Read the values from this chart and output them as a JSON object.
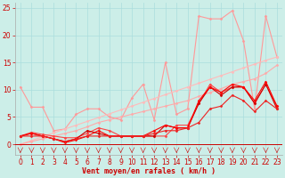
{
  "background_color": "#cceee8",
  "grid_color": "#aadddd",
  "xlabel": "Vent moyen/en rafales ( km/h )",
  "xlabel_color": "#cc0000",
  "xlabel_fontsize": 6,
  "xtick_color": "#cc0000",
  "ytick_color": "#cc0000",
  "tick_fontsize": 5.5,
  "xlim": [
    -0.5,
    23.5
  ],
  "ylim": [
    -2,
    26
  ],
  "yticks": [
    0,
    5,
    10,
    15,
    20,
    25
  ],
  "xticks": [
    0,
    1,
    2,
    3,
    4,
    5,
    6,
    7,
    8,
    9,
    10,
    11,
    12,
    13,
    14,
    15,
    16,
    17,
    18,
    19,
    20,
    21,
    22,
    23
  ],
  "series": [
    {
      "x": [
        0,
        1,
        2,
        3,
        4,
        5,
        6,
        7,
        8,
        9,
        10,
        11,
        12,
        13,
        14,
        15,
        16,
        17,
        18,
        19,
        20,
        21,
        22,
        23
      ],
      "y": [
        10.5,
        6.8,
        6.8,
        2.5,
        2.8,
        5.5,
        6.5,
        6.5,
        5.0,
        4.5,
        8.5,
        11.0,
        4.5,
        15.0,
        5.5,
        6.5,
        23.5,
        23.0,
        23.0,
        24.5,
        19.0,
        6.5,
        23.5,
        16.0
      ],
      "color": "#ff9999",
      "marker": "D",
      "markersize": 1.5,
      "linewidth": 0.8
    },
    {
      "x": [
        0,
        1,
        2,
        3,
        4,
        5,
        6,
        7,
        8,
        9,
        10,
        11,
        12,
        13,
        14,
        15,
        16,
        17,
        18,
        19,
        20,
        21,
        22,
        23
      ],
      "y": [
        0.0,
        0.7,
        1.4,
        2.1,
        2.8,
        3.5,
        4.2,
        4.9,
        5.6,
        6.3,
        7.0,
        7.7,
        8.4,
        9.1,
        9.8,
        10.5,
        11.2,
        11.9,
        12.6,
        13.3,
        14.0,
        14.7,
        15.4,
        16.0
      ],
      "color": "#ffbbbb",
      "marker": "D",
      "markersize": 1.5,
      "linewidth": 0.8
    },
    {
      "x": [
        0,
        1,
        2,
        3,
        4,
        5,
        6,
        7,
        8,
        9,
        10,
        11,
        12,
        13,
        14,
        15,
        16,
        17,
        18,
        19,
        20,
        21,
        22,
        23
      ],
      "y": [
        0.0,
        0.5,
        1.0,
        1.5,
        2.0,
        2.5,
        3.2,
        4.0,
        4.5,
        5.0,
        5.5,
        6.0,
        6.5,
        7.0,
        7.5,
        8.0,
        8.8,
        9.5,
        10.2,
        11.0,
        11.5,
        12.0,
        13.0,
        14.5
      ],
      "color": "#ffaaaa",
      "marker": "D",
      "markersize": 1.5,
      "linewidth": 0.8
    },
    {
      "x": [
        0,
        1,
        2,
        3,
        4,
        5,
        6,
        7,
        8,
        9,
        10,
        11,
        12,
        13,
        14,
        15,
        16,
        17,
        18,
        19,
        20,
        21,
        22,
        23
      ],
      "y": [
        1.5,
        2.2,
        1.8,
        1.5,
        1.2,
        1.2,
        2.0,
        3.0,
        2.5,
        1.5,
        1.5,
        1.5,
        1.5,
        1.5,
        3.5,
        3.5,
        7.5,
        11.0,
        9.5,
        10.5,
        10.5,
        7.5,
        11.0,
        7.0
      ],
      "color": "#ff4444",
      "marker": "D",
      "markersize": 1.5,
      "linewidth": 0.8
    },
    {
      "x": [
        0,
        1,
        2,
        3,
        4,
        5,
        6,
        7,
        8,
        9,
        10,
        11,
        12,
        13,
        14,
        15,
        16,
        17,
        18,
        19,
        20,
        21,
        22,
        23
      ],
      "y": [
        1.5,
        2.0,
        1.5,
        1.0,
        0.5,
        1.0,
        2.5,
        2.0,
        1.5,
        1.5,
        1.5,
        1.5,
        1.5,
        3.5,
        3.0,
        3.0,
        7.5,
        10.5,
        9.0,
        10.5,
        10.5,
        7.5,
        11.0,
        6.5
      ],
      "color": "#cc0000",
      "marker": "D",
      "markersize": 1.5,
      "linewidth": 0.8
    },
    {
      "x": [
        0,
        1,
        2,
        3,
        4,
        5,
        6,
        7,
        8,
        9,
        10,
        11,
        12,
        13,
        14,
        15,
        16,
        17,
        18,
        19,
        20,
        21,
        22,
        23
      ],
      "y": [
        1.5,
        2.0,
        1.5,
        1.0,
        0.3,
        0.8,
        1.5,
        2.5,
        1.5,
        1.5,
        1.5,
        1.5,
        2.5,
        3.5,
        3.0,
        3.0,
        8.0,
        10.5,
        9.5,
        11.0,
        10.5,
        8.0,
        11.5,
        7.0
      ],
      "color": "#ff0000",
      "marker": "D",
      "markersize": 1.5,
      "linewidth": 0.8
    },
    {
      "x": [
        0,
        1,
        2,
        3,
        4,
        5,
        6,
        7,
        8,
        9,
        10,
        11,
        12,
        13,
        14,
        15,
        16,
        17,
        18,
        19,
        20,
        21,
        22,
        23
      ],
      "y": [
        1.5,
        1.5,
        1.5,
        1.0,
        0.5,
        1.0,
        1.5,
        1.5,
        1.5,
        1.5,
        1.5,
        1.5,
        2.0,
        2.5,
        2.5,
        3.0,
        4.0,
        6.5,
        7.0,
        9.0,
        8.0,
        6.0,
        8.0,
        6.5
      ],
      "color": "#ee2222",
      "marker": "D",
      "markersize": 1.5,
      "linewidth": 0.8
    }
  ],
  "wind_color": "#cc0000",
  "wind_y": -1.3,
  "bottom_line_y": 0
}
